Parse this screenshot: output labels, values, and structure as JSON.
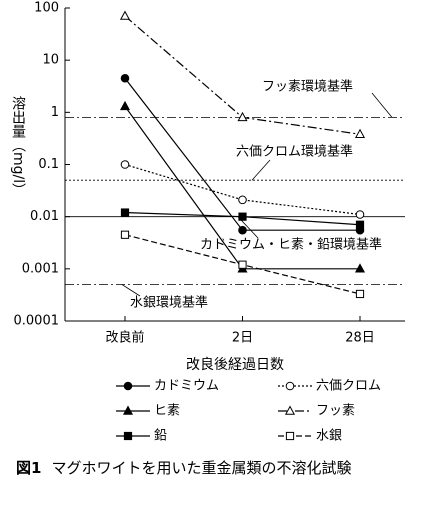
{
  "chart_data": {
    "type": "line",
    "y_label": "溶出量（mg/l）",
    "x_label": "改良後経過日数",
    "categories": [
      "改良前",
      "2日",
      "28日"
    ],
    "log_scale": true,
    "ylim": [
      0.0001,
      100
    ],
    "yticks": [
      0.0001,
      0.001,
      0.01,
      0.1,
      1,
      10,
      100
    ],
    "series": [
      {
        "name": "カドミウム",
        "color": "#000000",
        "dash": "solid",
        "marker": "circle",
        "filled": true,
        "values": [
          4.5,
          0.0055,
          0.0055
        ]
      },
      {
        "name": "六価クロム",
        "color": "#000000",
        "dash": "dotted",
        "marker": "circle",
        "filled": false,
        "values": [
          0.1,
          0.021,
          0.011
        ]
      },
      {
        "name": "ヒ素",
        "color": "#000000",
        "dash": "solid",
        "marker": "triangle",
        "filled": true,
        "values": [
          1.3,
          0.001,
          0.001
        ]
      },
      {
        "name": "フッ素",
        "color": "#000000",
        "dash": "dash-dot",
        "marker": "triangle",
        "filled": false,
        "values": [
          70,
          0.8,
          0.38
        ]
      },
      {
        "name": "鉛",
        "color": "#000000",
        "dash": "solid",
        "marker": "square",
        "filled": true,
        "values": [
          0.012,
          0.01,
          0.007
        ]
      },
      {
        "name": "水銀",
        "color": "#000000",
        "dash": "dashed",
        "marker": "square",
        "filled": false,
        "values": [
          0.0045,
          0.0012,
          0.00033
        ]
      }
    ],
    "reference_lines": [
      {
        "label": "フッ素環境基準",
        "value": 0.8,
        "dash": "dash-dot"
      },
      {
        "label": "六価クロム環境基準",
        "value": 0.05,
        "dash": "dotted"
      },
      {
        "label": "カドミウム・ヒ素・鉛環境基準",
        "value": 0.01,
        "dash": "solid"
      },
      {
        "label": "水銀環境基準",
        "value": 0.0005,
        "dash": "dash-dot"
      }
    ]
  },
  "caption": {
    "label": "図1",
    "text": "マグホワイトを用いた重金属類の不溶化試験"
  }
}
